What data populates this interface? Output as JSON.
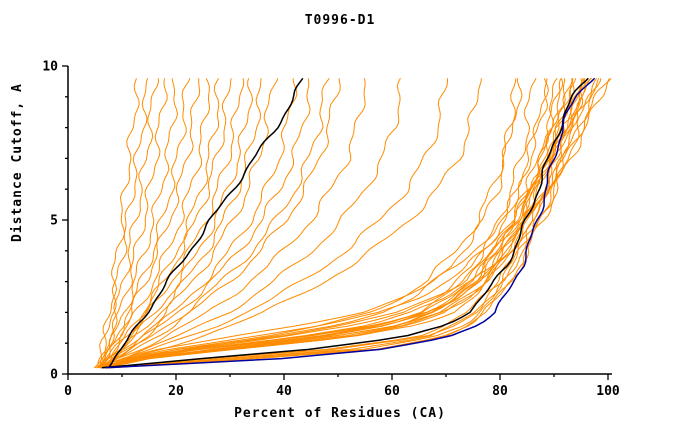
{
  "chart_data": {
    "type": "line",
    "title": "T0996-D1",
    "xlabel": "Percent of Residues (CA)",
    "ylabel": "Distance Cutoff, A",
    "xlim": [
      0,
      100
    ],
    "ylim": [
      0,
      10
    ],
    "x_ticks": [
      0,
      20,
      40,
      60,
      80,
      100
    ],
    "y_ticks": [
      0,
      5,
      10
    ],
    "x_minor_step": 10,
    "y_minor_step": 1,
    "grid": false,
    "legend": "none",
    "axis_color": "#000000",
    "cutoffs": [
      0.2,
      0.5,
      0.8,
      1.2,
      1.6,
      2,
      2.5,
      3,
      3.5,
      4,
      5,
      6,
      7,
      8,
      9,
      9.6
    ],
    "series": [
      {
        "name": "predicted-models",
        "color": "#ff8c00",
        "curves": [
          [
            6,
            6.5,
            6.7,
            7,
            7.4,
            7.7,
            8.1,
            8.5,
            8.8,
            9.2,
            10,
            10.6,
            11.3,
            12,
            12.6,
            13
          ],
          [
            5.5,
            6,
            6.5,
            7,
            7.5,
            8,
            8.6,
            9.1,
            9.6,
            10.1,
            11.1,
            12,
            12.9,
            13.7,
            14.5,
            15
          ],
          [
            6,
            6.6,
            7.1,
            7.7,
            8.3,
            8.9,
            9.5,
            10.2,
            10.8,
            11.4,
            12.5,
            13.5,
            14.4,
            15.2,
            15.8,
            16
          ],
          [
            5.8,
            6.5,
            7.2,
            8,
            8.8,
            9.5,
            10.4,
            11.2,
            12,
            12.7,
            14,
            15.2,
            16.2,
            17,
            17.6,
            18
          ],
          [
            6,
            6.8,
            7.6,
            8.6,
            9.5,
            10.4,
            11.4,
            12.4,
            13.3,
            14.2,
            15.8,
            17.2,
            18.4,
            19.2,
            19.8,
            20
          ],
          [
            6.2,
            7,
            8,
            9.2,
            10.3,
            11.3,
            12.5,
            13.6,
            14.7,
            15.7,
            17.5,
            19,
            20.3,
            21.2,
            21.8,
            22
          ],
          [
            5.5,
            6.5,
            7.6,
            9,
            10.3,
            11.5,
            12.9,
            14.2,
            15.5,
            16.7,
            18.8,
            20.6,
            22,
            23,
            23.7,
            24
          ],
          [
            6,
            7.2,
            8.4,
            9.9,
            11.3,
            12.7,
            14.3,
            15.8,
            17.2,
            18.5,
            20.8,
            22.7,
            24.2,
            25.2,
            25.8,
            26
          ],
          [
            6.5,
            7.8,
            9.1,
            10.8,
            12.4,
            13.9,
            15.6,
            17.2,
            18.7,
            20.1,
            22.6,
            24.6,
            26.2,
            27.2,
            27.8,
            28
          ],
          [
            5.8,
            7.2,
            8.7,
            10.6,
            12.4,
            14,
            15.9,
            17.7,
            19.4,
            21,
            23.7,
            25.9,
            27.6,
            28.8,
            29.6,
            30
          ],
          [
            6,
            7.6,
            9.2,
            11.3,
            13.2,
            15,
            17.1,
            19,
            20.9,
            22.6,
            25.5,
            27.8,
            29.6,
            30.8,
            31.6,
            32
          ],
          [
            6.5,
            8.2,
            10,
            12.2,
            14.3,
            16.2,
            18.4,
            20.5,
            22.4,
            24.2,
            27.2,
            29.7,
            31.5,
            32.8,
            33.6,
            34
          ],
          [
            6,
            8,
            10,
            12.5,
            14.8,
            17,
            19.4,
            21.6,
            23.7,
            25.6,
            28.9,
            31.4,
            33.4,
            34.7,
            35.6,
            36
          ],
          [
            6.2,
            8.3,
            10.5,
            13.2,
            15.7,
            18,
            20.6,
            23,
            25.2,
            27.2,
            30.6,
            33.3,
            35.3,
            36.7,
            37.5,
            38
          ],
          [
            6.5,
            8.8,
            11.2,
            14.2,
            17,
            19.6,
            22.5,
            25.2,
            27.7,
            30,
            33.8,
            36.8,
            39,
            40.5,
            41.5,
            42
          ],
          [
            5.8,
            8.3,
            11,
            14.3,
            17.4,
            20.3,
            23.5,
            26.5,
            29.2,
            31.7,
            35.9,
            39.2,
            41.7,
            43.4,
            44.5,
            45
          ],
          [
            6,
            8.7,
            11.6,
            15.2,
            18.6,
            21.7,
            25.2,
            28.4,
            31.4,
            34.1,
            38.6,
            42.1,
            44.7,
            46.4,
            47.5,
            48
          ],
          [
            6.5,
            9.3,
            12.3,
            16,
            19.6,
            22.8,
            26.4,
            29.8,
            32.9,
            35.7,
            40.3,
            43.9,
            46.6,
            48.3,
            49.5,
            50
          ],
          [
            6,
            9,
            13,
            18,
            22,
            26,
            30,
            33.5,
            37,
            40,
            45,
            48.8,
            51.7,
            53.5,
            54.6,
            55
          ],
          [
            6.5,
            10,
            14.5,
            20,
            25,
            29.5,
            34,
            38,
            41.8,
            45.2,
            50.8,
            55,
            58.3,
            60.3,
            61.5,
            62
          ],
          [
            6,
            10.5,
            15.5,
            22,
            27.8,
            33,
            38.5,
            43.2,
            47.5,
            51.4,
            57.8,
            62.7,
            66.2,
            68.4,
            69.6,
            70
          ],
          [
            7,
            11.5,
            17,
            24,
            30.5,
            36.2,
            42.2,
            47.4,
            52.1,
            56.3,
            63.2,
            68.5,
            72.2,
            74.5,
            75.6,
            76
          ],
          [
            6,
            11,
            20,
            36,
            48,
            56,
            62,
            66,
            69,
            72,
            76,
            78.5,
            80.5,
            82,
            83.5,
            84
          ],
          [
            7,
            12,
            22,
            38,
            50,
            58,
            64,
            68,
            71,
            73,
            77,
            79.5,
            81,
            82,
            82.7,
            83
          ],
          [
            6,
            12,
            25,
            45,
            58,
            65,
            70,
            73,
            75,
            77,
            80,
            82,
            84,
            85,
            85.5,
            86
          ],
          [
            7,
            14,
            28,
            50,
            62,
            68,
            72,
            75,
            77,
            79,
            82,
            84,
            85.5,
            87,
            88,
            88.5
          ],
          [
            6,
            11,
            22,
            40,
            54,
            62,
            68,
            72,
            75,
            77,
            81,
            83,
            85,
            87,
            88.5,
            89
          ],
          [
            8,
            25,
            50,
            66,
            72,
            75,
            78,
            80,
            81,
            82,
            85,
            86.5,
            88,
            89,
            90,
            90.5
          ],
          [
            6,
            13,
            27,
            48,
            61,
            68,
            73,
            76,
            78,
            80,
            83,
            85,
            87,
            89,
            90.5,
            91
          ],
          [
            7,
            15,
            30,
            52,
            64,
            70,
            74,
            77,
            79,
            81,
            84,
            86,
            88,
            90,
            91.5,
            92
          ],
          [
            6,
            12,
            24,
            44,
            58,
            66,
            71,
            75,
            77,
            79,
            83,
            85.5,
            87.5,
            89.5,
            91,
            92
          ],
          [
            8,
            30,
            55,
            68,
            73,
            76,
            79,
            81,
            82.5,
            84,
            86.5,
            88.5,
            90,
            91.5,
            92.5,
            93
          ],
          [
            6,
            14,
            29,
            51,
            63,
            69,
            74,
            77,
            79,
            81,
            84.5,
            87,
            89,
            91,
            92.5,
            93
          ],
          [
            7,
            13,
            26,
            47,
            60,
            67,
            72,
            76,
            78,
            80,
            84,
            86.5,
            89,
            91,
            93,
            94
          ],
          [
            6,
            15,
            31,
            53,
            65,
            71,
            75,
            78,
            80,
            82,
            85.5,
            88,
            90,
            92,
            93.5,
            94
          ],
          [
            8,
            35,
            58,
            69,
            74,
            77,
            80,
            82,
            83.5,
            85,
            87.5,
            90,
            91.5,
            93,
            94.5,
            95
          ],
          [
            6,
            12,
            23,
            42,
            56,
            64,
            70,
            74,
            77,
            79,
            83,
            86,
            88.5,
            91,
            93.5,
            95
          ],
          [
            7,
            28,
            52,
            67,
            72,
            75,
            78,
            80.5,
            82,
            83.5,
            86.5,
            89,
            91,
            93,
            95,
            96
          ],
          [
            6,
            13,
            25,
            46,
            59,
            67,
            72,
            76,
            79,
            81,
            85,
            88,
            90.5,
            93,
            95.5,
            97
          ],
          [
            8,
            33,
            57,
            69,
            74,
            77,
            80,
            82,
            83.5,
            85,
            88,
            90.5,
            92.5,
            94.5,
            96.5,
            98
          ],
          [
            6,
            11,
            20,
            38,
            52,
            61,
            68,
            73,
            76,
            79,
            83.5,
            87,
            90,
            93,
            96,
            98
          ],
          [
            7,
            14,
            28,
            49,
            62,
            69,
            74,
            78,
            80,
            82,
            86,
            89,
            92,
            94.5,
            97,
            99
          ],
          [
            6,
            12,
            24,
            43,
            57,
            65,
            71,
            75,
            78,
            81,
            85,
            88.5,
            92,
            95,
            98,
            100
          ],
          [
            8,
            26,
            48,
            64,
            70,
            74,
            77,
            80,
            82,
            83.5,
            87,
            90,
            93,
            96,
            98.5,
            100
          ],
          [
            5,
            10,
            18,
            34,
            48,
            58,
            65,
            70,
            74,
            77,
            82,
            86,
            89,
            92,
            95,
            96
          ],
          [
            6,
            10,
            17,
            30,
            44,
            54,
            62,
            68,
            72,
            75,
            81,
            85,
            88.5,
            92,
            95,
            97
          ]
        ]
      },
      {
        "name": "highlight-model-black-left",
        "color": "#000000",
        "curves": [
          [
            7,
            8.5,
            10,
            11.5,
            13,
            14.5,
            16.5,
            18.5,
            20.5,
            22.5,
            26.5,
            30.5,
            34.5,
            38.5,
            42,
            43.5
          ]
        ]
      },
      {
        "name": "highlight-model-black-right",
        "color": "#000000",
        "curves": [
          [
            6,
            25,
            45,
            62,
            70,
            74,
            77,
            79,
            81,
            82.5,
            85,
            87,
            89,
            91,
            93.5,
            96
          ]
        ]
      },
      {
        "name": "highlight-model-blue",
        "color": "#0000a0",
        "curves": [
          [
            7,
            40,
            58,
            70,
            76,
            79,
            81,
            82.5,
            84,
            85,
            87,
            88.5,
            90,
            91.5,
            94,
            97
          ]
        ]
      }
    ]
  }
}
